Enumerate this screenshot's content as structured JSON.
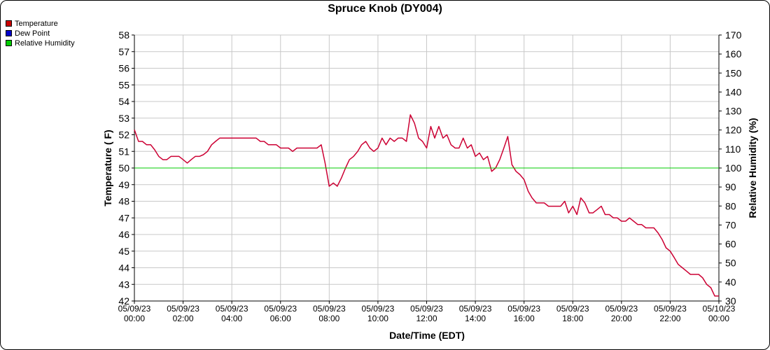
{
  "colors": {
    "temperature": "#cc0000",
    "dew_point": "#0000cc",
    "relative_humidity": "#00cc00",
    "plot_line": "#cc0033",
    "grid": "#c8c8c8"
  },
  "chart_data": {
    "type": "line",
    "title": "Spruce Knob (DY004)",
    "xlabel": "Date/Time (EDT)",
    "ylabel": "Temperature ( F)",
    "y2label": "Relative Humidity (%)",
    "ylim": [
      42,
      58
    ],
    "y2lim": [
      30,
      170
    ],
    "xlim": [
      0,
      24
    ],
    "x_ticks": [
      {
        "date": "05/09/23",
        "time": "00:00"
      },
      {
        "date": "05/09/23",
        "time": "02:00"
      },
      {
        "date": "05/09/23",
        "time": "04:00"
      },
      {
        "date": "05/09/23",
        "time": "06:00"
      },
      {
        "date": "05/09/23",
        "time": "08:00"
      },
      {
        "date": "05/09/23",
        "time": "10:00"
      },
      {
        "date": "05/09/23",
        "time": "12:00"
      },
      {
        "date": "05/09/23",
        "time": "14:00"
      },
      {
        "date": "05/09/23",
        "time": "16:00"
      },
      {
        "date": "05/09/23",
        "time": "18:00"
      },
      {
        "date": "05/09/23",
        "time": "20:00"
      },
      {
        "date": "05/09/23",
        "time": "22:00"
      },
      {
        "date": "05/10/23",
        "time": "00:00"
      }
    ],
    "y_ticks": [
      "42",
      "43",
      "44",
      "45",
      "46",
      "47",
      "48",
      "49",
      "50",
      "51",
      "52",
      "53",
      "54",
      "55",
      "56",
      "57",
      "58"
    ],
    "y2_ticks": [
      "30",
      "40",
      "50",
      "60",
      "70",
      "80",
      "90",
      "100",
      "110",
      "120",
      "130",
      "140",
      "150",
      "160",
      "170"
    ],
    "grid": true,
    "legend_position": "top-left",
    "legend": [
      "Temperature",
      "Dew Point",
      "Relative Humidity"
    ],
    "series": [
      {
        "name": "Temperature",
        "axis": "left",
        "x": [
          0,
          0.17,
          0.33,
          0.5,
          0.67,
          0.83,
          1,
          1.17,
          1.33,
          1.5,
          1.67,
          1.83,
          2,
          2.17,
          2.33,
          2.5,
          2.67,
          2.83,
          3,
          3.17,
          3.33,
          3.5,
          3.67,
          3.83,
          4,
          4.17,
          4.33,
          4.5,
          4.67,
          4.83,
          5,
          5.17,
          5.33,
          5.5,
          5.67,
          5.83,
          6,
          6.17,
          6.33,
          6.5,
          6.67,
          6.83,
          7,
          7.17,
          7.33,
          7.5,
          7.67,
          7.83,
          8,
          8.17,
          8.33,
          8.5,
          8.67,
          8.83,
          9,
          9.17,
          9.33,
          9.5,
          9.67,
          9.83,
          10,
          10.17,
          10.33,
          10.5,
          10.67,
          10.83,
          11,
          11.17,
          11.33,
          11.5,
          11.67,
          11.83,
          12,
          12.17,
          12.33,
          12.5,
          12.67,
          12.83,
          13,
          13.17,
          13.33,
          13.5,
          13.67,
          13.83,
          14,
          14.17,
          14.33,
          14.5,
          14.67,
          14.83,
          15,
          15.17,
          15.33,
          15.5,
          15.67,
          15.83,
          16,
          16.17,
          16.33,
          16.5,
          16.67,
          16.83,
          17,
          17.17,
          17.33,
          17.5,
          17.67,
          17.83,
          18,
          18.17,
          18.33,
          18.5,
          18.67,
          18.83,
          19,
          19.17,
          19.33,
          19.5,
          19.67,
          19.83,
          20,
          20.17,
          20.33,
          20.5,
          20.67,
          20.83,
          21,
          21.17,
          21.33,
          21.5,
          21.67,
          21.83,
          22,
          22.17,
          22.33,
          22.5,
          22.67,
          22.83,
          23,
          23.17,
          23.33,
          23.5,
          23.67,
          23.83,
          24
        ],
        "y": [
          52.3,
          51.6,
          51.6,
          51.4,
          51.4,
          51.1,
          50.7,
          50.5,
          50.5,
          50.7,
          50.7,
          50.7,
          50.5,
          50.3,
          50.5,
          50.7,
          50.7,
          50.8,
          51.0,
          51.4,
          51.6,
          51.8,
          51.8,
          51.8,
          51.8,
          51.8,
          51.8,
          51.8,
          51.8,
          51.8,
          51.8,
          51.6,
          51.6,
          51.4,
          51.4,
          51.4,
          51.2,
          51.2,
          51.2,
          51.0,
          51.2,
          51.2,
          51.2,
          51.2,
          51.2,
          51.2,
          51.4,
          50.3,
          48.9,
          49.1,
          48.9,
          49.4,
          50.0,
          50.5,
          50.7,
          51.0,
          51.4,
          51.6,
          51.2,
          51.0,
          51.2,
          51.8,
          51.4,
          51.8,
          51.6,
          51.8,
          51.8,
          51.6,
          53.2,
          52.7,
          51.8,
          51.6,
          51.2,
          52.5,
          51.8,
          52.5,
          51.8,
          52.0,
          51.4,
          51.2,
          51.2,
          51.8,
          51.2,
          51.4,
          50.7,
          50.9,
          50.5,
          50.7,
          49.8,
          50.0,
          50.5,
          51.2,
          51.9,
          50.2,
          49.8,
          49.6,
          49.3,
          48.6,
          48.2,
          47.9,
          47.9,
          47.9,
          47.7,
          47.7,
          47.7,
          47.7,
          48.0,
          47.3,
          47.7,
          47.2,
          48.2,
          47.9,
          47.3,
          47.3,
          47.5,
          47.7,
          47.2,
          47.2,
          47.0,
          47.0,
          46.8,
          46.8,
          47.0,
          46.8,
          46.6,
          46.6,
          46.4,
          46.4,
          46.4,
          46.1,
          45.7,
          45.2,
          45.0,
          44.6,
          44.2,
          44.0,
          43.8,
          43.6,
          43.6,
          43.6,
          43.4,
          43.0,
          42.8,
          42.3,
          42.3
        ]
      },
      {
        "name": "Relative Humidity",
        "axis": "right",
        "x": [
          0,
          24
        ],
        "y": [
          100,
          100
        ]
      }
    ]
  }
}
